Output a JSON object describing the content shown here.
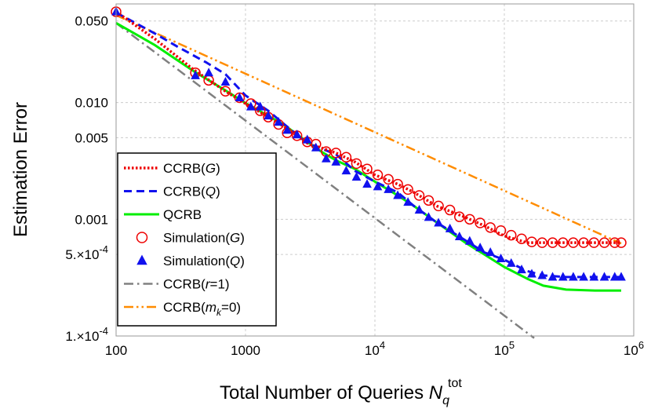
{
  "chart_data": {
    "type": "line",
    "xlabel": "Total Number of Queries N_q^tot",
    "xlabel_main": "Total Number of Queries ",
    "xlabel_symbol": "N",
    "xlabel_sub": "q",
    "xlabel_sup": "tot",
    "ylabel": "Estimation Error",
    "xscale": "log",
    "yscale": "log",
    "xlim": [
      100,
      1000000
    ],
    "ylim": [
      0.0001,
      0.07
    ],
    "grid": true,
    "legend_position": "left-middle",
    "xticks": [
      {
        "value": 100,
        "base": "100",
        "exp": ""
      },
      {
        "value": 1000,
        "base": "1000",
        "exp": ""
      },
      {
        "value": 10000,
        "base": "10",
        "exp": "4"
      },
      {
        "value": 100000,
        "base": "10",
        "exp": "5"
      },
      {
        "value": 1000000,
        "base": "10",
        "exp": "6"
      }
    ],
    "yticks": [
      {
        "value": 0.0001,
        "label": "1.×10",
        "exp": "-4"
      },
      {
        "value": 0.0005,
        "label": "5.×10",
        "exp": "-4"
      },
      {
        "value": 0.001,
        "label": "0.001",
        "exp": ""
      },
      {
        "value": 0.005,
        "label": "0.005",
        "exp": ""
      },
      {
        "value": 0.01,
        "label": "0.010",
        "exp": ""
      },
      {
        "value": 0.05,
        "label": "0.050",
        "exp": ""
      }
    ],
    "series": [
      {
        "name": "CCRB(r=1)",
        "legend_main": "CCRB(",
        "legend_italic": "r",
        "legend_rest": "=1)",
        "color": "#808080",
        "style": "dashdot",
        "marker": "none",
        "x": [
          100,
          170000
        ],
        "y": [
          0.048,
          9.6e-05
        ]
      },
      {
        "name": "CCRB(m_k=0)",
        "legend_main": "CCRB(",
        "legend_italic": "m",
        "legend_sub": "k",
        "legend_rest": "=0)",
        "color": "#ff8c00",
        "style": "dashdotdot",
        "marker": "none",
        "x": [
          100,
          800000
        ],
        "y": [
          0.056,
          0.00062
        ]
      },
      {
        "name": "QCRB",
        "legend_main": "QCRB",
        "legend_italic": "",
        "legend_rest": "",
        "color": "#00ee00",
        "style": "solid",
        "marker": "none",
        "x": [
          100,
          200,
          400,
          700,
          1000,
          1500,
          2000,
          3000,
          4000,
          5000,
          7000,
          10000,
          15000,
          20000,
          30000,
          50000,
          70000,
          100000,
          150000,
          200000,
          300000,
          500000,
          800000
        ],
        "y": [
          0.048,
          0.031,
          0.0185,
          0.0127,
          0.0099,
          0.0077,
          0.0064,
          0.0046,
          0.0037,
          0.0032,
          0.0027,
          0.0021,
          0.0016,
          0.0013,
          0.00094,
          0.00063,
          0.0005,
          0.00039,
          0.00031,
          0.00027,
          0.00025,
          0.000245,
          0.000245
        ]
      },
      {
        "name": "CCRB(G)",
        "legend_main": "CCRB(",
        "legend_italic": "G",
        "legend_rest": ")",
        "color": "#ee0000",
        "style": "dotted",
        "marker": "none",
        "x": [
          100,
          200,
          400,
          700,
          1000,
          1500,
          2000,
          3000,
          5000,
          7000,
          10000,
          15000,
          20000,
          30000,
          50000,
          70000,
          100000,
          150000,
          200000,
          300000,
          500000,
          800000
        ],
        "y": [
          0.06,
          0.035,
          0.019,
          0.0125,
          0.0098,
          0.0075,
          0.0062,
          0.0045,
          0.0037,
          0.0031,
          0.0024,
          0.002,
          0.0017,
          0.0013,
          0.00104,
          0.00088,
          0.00072,
          0.00063,
          0.00063,
          0.00063,
          0.00063,
          0.00063
        ]
      },
      {
        "name": "CCRB(Q)",
        "legend_main": "CCRB(",
        "legend_italic": "Q",
        "legend_rest": ")",
        "color": "#1111ee",
        "style": "dashed",
        "marker": "none",
        "x": [
          100,
          200,
          300,
          500,
          700,
          1000,
          1500,
          2000,
          3000,
          5000,
          7000,
          10000,
          15000,
          20000,
          30000,
          50000,
          70000,
          100000,
          150000,
          200000,
          300000,
          500000,
          800000
        ],
        "y": [
          0.059,
          0.039,
          0.03,
          0.022,
          0.0175,
          0.0115,
          0.0085,
          0.0065,
          0.0045,
          0.0036,
          0.0026,
          0.0021,
          0.0017,
          0.0013,
          0.00094,
          0.00066,
          0.00052,
          0.00045,
          0.00036,
          0.00033,
          0.00032,
          0.00032,
          0.00032
        ]
      },
      {
        "name": "Simulation(G)",
        "legend_main": "Simulation(",
        "legend_italic": "G",
        "legend_rest": ")",
        "color": "#ee0000",
        "style": "none",
        "marker": "circle",
        "x": [
          100,
          410,
          520,
          700,
          900,
          1100,
          1300,
          1500,
          1800,
          2100,
          2500,
          3000,
          3500,
          4200,
          5000,
          6000,
          7200,
          8700,
          10500,
          12700,
          15000,
          18000,
          22000,
          26000,
          31000,
          38000,
          45000,
          54000,
          65000,
          78000,
          94000,
          113000,
          136000,
          163000,
          196000,
          236000,
          284000,
          341000,
          410000,
          493000,
          593000,
          713000,
          800000
        ],
        "y": [
          0.06,
          0.018,
          0.0155,
          0.0125,
          0.011,
          0.0098,
          0.0085,
          0.0075,
          0.0065,
          0.0055,
          0.0052,
          0.0046,
          0.0044,
          0.0038,
          0.0037,
          0.0034,
          0.003,
          0.0027,
          0.0024,
          0.0022,
          0.002,
          0.0018,
          0.0016,
          0.00145,
          0.0013,
          0.0012,
          0.00105,
          0.001,
          0.00093,
          0.00085,
          0.0008,
          0.00073,
          0.00068,
          0.00064,
          0.00063,
          0.00063,
          0.00063,
          0.00063,
          0.00063,
          0.00063,
          0.00063,
          0.00063,
          0.00063
        ]
      },
      {
        "name": "Simulation(Q)",
        "legend_main": "Simulation(",
        "legend_italic": "Q",
        "legend_rest": ")",
        "color": "#1111ee",
        "style": "none",
        "marker": "triangle",
        "x": [
          100,
          410,
          520,
          700,
          900,
          1100,
          1300,
          1500,
          1800,
          2100,
          2500,
          3000,
          3500,
          4200,
          5000,
          6000,
          7200,
          8700,
          10500,
          12700,
          15000,
          18000,
          22000,
          26000,
          31000,
          38000,
          45000,
          54000,
          65000,
          78000,
          94000,
          113000,
          136000,
          163000,
          196000,
          236000,
          284000,
          341000,
          410000,
          493000,
          593000,
          713000,
          800000
        ],
        "y": [
          0.06,
          0.017,
          0.018,
          0.015,
          0.011,
          0.0092,
          0.0092,
          0.0077,
          0.0068,
          0.0058,
          0.0053,
          0.0048,
          0.0041,
          0.0033,
          0.0031,
          0.0026,
          0.0023,
          0.002,
          0.0019,
          0.0018,
          0.0016,
          0.0014,
          0.0012,
          0.00104,
          0.00093,
          0.00083,
          0.00071,
          0.00065,
          0.00057,
          0.00052,
          0.00046,
          0.00042,
          0.00037,
          0.00034,
          0.00033,
          0.00032,
          0.00032,
          0.00032,
          0.00032,
          0.00032,
          0.00032,
          0.00032,
          0.00032
        ]
      }
    ],
    "legend_order": [
      "CCRB(G)",
      "CCRB(Q)",
      "QCRB",
      "Simulation(G)",
      "Simulation(Q)",
      "CCRB(r=1)",
      "CCRB(m_k=0)"
    ]
  }
}
